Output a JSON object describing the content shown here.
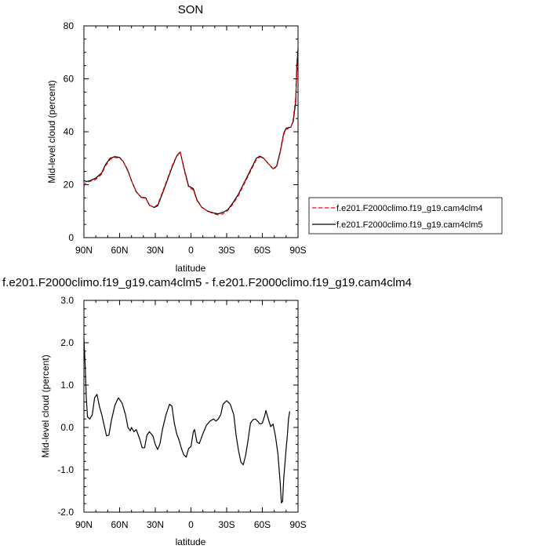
{
  "chart_data": [
    {
      "type": "line",
      "title": "SON",
      "xlabel": "latitude",
      "ylabel": "Mid-level cloud (percent)",
      "xlim": [
        90,
        -90
      ],
      "ylim": [
        0,
        80
      ],
      "x_ticks": [
        {
          "value": 90,
          "label": "90N"
        },
        {
          "value": 60,
          "label": "60N"
        },
        {
          "value": 30,
          "label": "30N"
        },
        {
          "value": 0,
          "label": "0"
        },
        {
          "value": -30,
          "label": "30S"
        },
        {
          "value": -60,
          "label": "60S"
        },
        {
          "value": -90,
          "label": "90S"
        }
      ],
      "y_ticks": [
        {
          "value": 0,
          "label": "0"
        },
        {
          "value": 20,
          "label": "20"
        },
        {
          "value": 40,
          "label": "40"
        },
        {
          "value": 60,
          "label": "60"
        },
        {
          "value": 80,
          "label": "80"
        }
      ],
      "legend_position": "right",
      "series": [
        {
          "name": "f.e201.F2000climo.f19_g19.cam4clm4",
          "color": "#ff0000",
          "dash": "dashed",
          "points": [
            [
              90,
              19.5
            ],
            [
              88,
              21
            ],
            [
              85,
              21.2
            ],
            [
              80,
              22
            ],
            [
              75,
              24
            ],
            [
              72,
              27
            ],
            [
              68,
              29.5
            ],
            [
              64,
              30.3
            ],
            [
              60,
              30
            ],
            [
              57,
              28.8
            ],
            [
              53,
              25
            ],
            [
              50,
              21.5
            ],
            [
              46,
              17.5
            ],
            [
              42,
              15.2
            ],
            [
              38,
              14.8
            ],
            [
              35,
              12.2
            ],
            [
              31,
              11.5
            ],
            [
              28,
              12.5
            ],
            [
              25,
              16
            ],
            [
              20,
              22
            ],
            [
              16,
              27
            ],
            [
              12,
              31
            ],
            [
              9,
              32.5
            ],
            [
              6,
              26
            ],
            [
              2,
              19
            ],
            [
              -2,
              18
            ],
            [
              -5,
              14
            ],
            [
              -9,
              11.5
            ],
            [
              -14,
              10
            ],
            [
              -19,
              9
            ],
            [
              -23,
              8.6
            ],
            [
              -27,
              9
            ],
            [
              -31,
              10.3
            ],
            [
              -35,
              12.5
            ],
            [
              -40,
              16
            ],
            [
              -45,
              20.5
            ],
            [
              -50,
              25
            ],
            [
              -55,
              29.5
            ],
            [
              -58,
              30.5
            ],
            [
              -61,
              30
            ],
            [
              -65,
              28
            ],
            [
              -69,
              26
            ],
            [
              -72,
              26.5
            ],
            [
              -75,
              32
            ],
            [
              -78,
              39
            ],
            [
              -80,
              41
            ],
            [
              -84,
              41.5
            ],
            [
              -86,
              45
            ],
            [
              -88,
              53
            ],
            [
              -90,
              70
            ]
          ]
        },
        {
          "name": "f.e201.F2000climo.f19_g19.cam4clm5",
          "color": "#000000",
          "dash": "solid",
          "points": [
            [
              90,
              21.6
            ],
            [
              88,
              21.2
            ],
            [
              85,
              21.5
            ],
            [
              80,
              22.5
            ],
            [
              75,
              24.5
            ],
            [
              72,
              27.5
            ],
            [
              68,
              30
            ],
            [
              64,
              30.6
            ],
            [
              60,
              30.3
            ],
            [
              57,
              28.8
            ],
            [
              53,
              25.3
            ],
            [
              50,
              21.5
            ],
            [
              46,
              17.3
            ],
            [
              42,
              15.3
            ],
            [
              38,
              15
            ],
            [
              35,
              12.3
            ],
            [
              31,
              11.4
            ],
            [
              28,
              12
            ],
            [
              25,
              15.5
            ],
            [
              20,
              21.5
            ],
            [
              16,
              26.5
            ],
            [
              12,
              30.8
            ],
            [
              9,
              32.3
            ],
            [
              6,
              26.5
            ],
            [
              2,
              19.5
            ],
            [
              -2,
              18.5
            ],
            [
              -5,
              14.3
            ],
            [
              -9,
              11.5
            ],
            [
              -14,
              10
            ],
            [
              -19,
              9.3
            ],
            [
              -23,
              9
            ],
            [
              -27,
              9.6
            ],
            [
              -31,
              10.6
            ],
            [
              -35,
              13
            ],
            [
              -40,
              16.5
            ],
            [
              -45,
              21
            ],
            [
              -50,
              25.5
            ],
            [
              -55,
              30
            ],
            [
              -58,
              30.8
            ],
            [
              -61,
              30
            ],
            [
              -65,
              28
            ],
            [
              -69,
              26
            ],
            [
              -72,
              27
            ],
            [
              -75,
              32.5
            ],
            [
              -78,
              39.5
            ],
            [
              -80,
              41.3
            ],
            [
              -84,
              41.8
            ],
            [
              -86,
              44
            ],
            [
              -88,
              51
            ],
            [
              -89,
              65
            ],
            [
              -90,
              71.5
            ]
          ]
        }
      ]
    },
    {
      "type": "line",
      "title": "f.e201.F2000climo.f19_g19.cam4clm5 - f.e201.F2000climo.f19_g19.cam4clm4",
      "xlabel": "latitude",
      "ylabel": "Mid-level cloud (percent)",
      "xlim": [
        90,
        -90
      ],
      "ylim": [
        -2.0,
        3.0
      ],
      "x_ticks": [
        {
          "value": 90,
          "label": "90N"
        },
        {
          "value": 60,
          "label": "60N"
        },
        {
          "value": 30,
          "label": "30N"
        },
        {
          "value": 0,
          "label": "0"
        },
        {
          "value": -30,
          "label": "30S"
        },
        {
          "value": -60,
          "label": "60S"
        },
        {
          "value": -90,
          "label": "90S"
        }
      ],
      "y_ticks": [
        {
          "value": -2.0,
          "label": "-2.0"
        },
        {
          "value": -1.0,
          "label": "-1.0"
        },
        {
          "value": 0.0,
          "label": "0.0"
        },
        {
          "value": 1.0,
          "label": "1.0"
        },
        {
          "value": 2.0,
          "label": "2.0"
        },
        {
          "value": 3.0,
          "label": "3.0"
        }
      ],
      "series": [
        {
          "color": "#000000",
          "dash": "solid",
          "points": [
            [
              90,
              2.1
            ],
            [
              89,
              1.5
            ],
            [
              88,
              0.7
            ],
            [
              87,
              0.25
            ],
            [
              85,
              0.2
            ],
            [
              83,
              0.3
            ],
            [
              81,
              0.7
            ],
            [
              79,
              0.78
            ],
            [
              77,
              0.5
            ],
            [
              75,
              0.3
            ],
            [
              73,
              0.05
            ],
            [
              71,
              -0.2
            ],
            [
              69,
              -0.18
            ],
            [
              67,
              0.15
            ],
            [
              64,
              0.52
            ],
            [
              61,
              0.7
            ],
            [
              58,
              0.58
            ],
            [
              55,
              0.3
            ],
            [
              53,
              0.0
            ],
            [
              51,
              -0.08
            ],
            [
              50,
              0.0
            ],
            [
              48,
              -0.1
            ],
            [
              46,
              -0.05
            ],
            [
              43,
              -0.28
            ],
            [
              41,
              -0.48
            ],
            [
              39,
              -0.48
            ],
            [
              37,
              -0.18
            ],
            [
              35,
              -0.1
            ],
            [
              32,
              -0.2
            ],
            [
              30,
              -0.4
            ],
            [
              28,
              -0.52
            ],
            [
              26,
              -0.38
            ],
            [
              24,
              -0.05
            ],
            [
              21,
              0.3
            ],
            [
              18,
              0.55
            ],
            [
              16,
              0.5
            ],
            [
              14,
              0.1
            ],
            [
              12,
              -0.15
            ],
            [
              10,
              -0.3
            ],
            [
              8,
              -0.5
            ],
            [
              6,
              -0.65
            ],
            [
              4,
              -0.7
            ],
            [
              2,
              -0.5
            ],
            [
              0,
              -0.45
            ],
            [
              -2,
              -0.1
            ],
            [
              -3,
              -0.05
            ],
            [
              -5,
              -0.35
            ],
            [
              -7,
              -0.38
            ],
            [
              -10,
              -0.15
            ],
            [
              -13,
              0.05
            ],
            [
              -16,
              0.15
            ],
            [
              -19,
              0.2
            ],
            [
              -21,
              0.15
            ],
            [
              -23,
              0.2
            ],
            [
              -25,
              0.3
            ],
            [
              -27,
              0.55
            ],
            [
              -30,
              0.63
            ],
            [
              -33,
              0.55
            ],
            [
              -36,
              0.3
            ],
            [
              -38,
              -0.2
            ],
            [
              -40,
              -0.55
            ],
            [
              -42,
              -0.82
            ],
            [
              -44,
              -0.88
            ],
            [
              -46,
              -0.65
            ],
            [
              -48,
              -0.3
            ],
            [
              -50,
              0.1
            ],
            [
              -52,
              0.18
            ],
            [
              -54,
              0.2
            ],
            [
              -56,
              0.15
            ],
            [
              -58,
              0.08
            ],
            [
              -60,
              0.1
            ],
            [
              -62,
              0.28
            ],
            [
              -63,
              0.4
            ],
            [
              -65,
              0.2
            ],
            [
              -67,
              0.02
            ],
            [
              -69,
              0.08
            ],
            [
              -71,
              -0.2
            ],
            [
              -73,
              -0.6
            ],
            [
              -75,
              -1.3
            ],
            [
              -76,
              -1.78
            ],
            [
              -77,
              -1.75
            ],
            [
              -78,
              -1.2
            ],
            [
              -80,
              -0.5
            ],
            [
              -81,
              -0.2
            ],
            [
              -82,
              0.2
            ],
            [
              -83,
              0.38
            ]
          ]
        }
      ]
    }
  ]
}
